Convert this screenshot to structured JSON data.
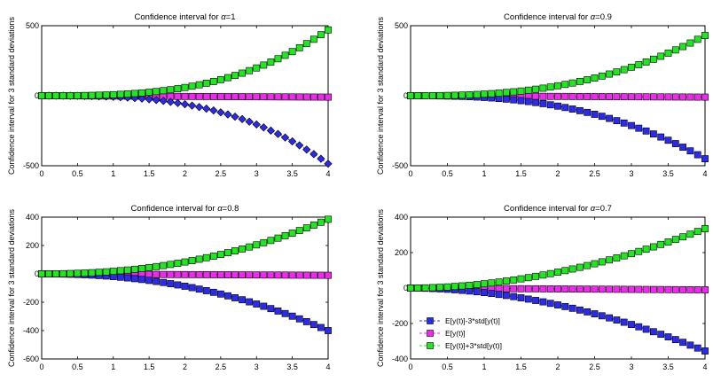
{
  "colors": {
    "lower": "#2b2be8",
    "mean": "#ee2aee",
    "upper": "#22e622",
    "axis": "#000000",
    "background": "#ffffff"
  },
  "legend": {
    "location": "lower-left of bottom-right panel",
    "entries": [
      {
        "label": "E[y(t)]-3*std[y(t)]",
        "series": "lower"
      },
      {
        "label": "E[y(t)]",
        "series": "mean"
      },
      {
        "label": "E[y(t)]+3*std[y(t)]",
        "series": "upper"
      }
    ]
  },
  "chart_data": [
    {
      "type": "line",
      "title_prefix": "Confidence interval for ",
      "alpha_symbol": "α",
      "alpha_value": "=1",
      "ylabel": "Confidence interval for 3 standard deviations",
      "xlabel": "",
      "xlim": [
        0,
        4
      ],
      "ylim": [
        -500,
        500
      ],
      "xticks": [
        "0",
        "0.5",
        "1",
        "1.5",
        "2",
        "2.5",
        "3",
        "3.5",
        "4"
      ],
      "yticks": [
        "-500",
        "0",
        "500"
      ],
      "lower_marker": "diamond",
      "x_start": 0,
      "x_step": 0.1,
      "n_points": 41,
      "series": [
        {
          "name": "E[y(t)]-3*std[y(t)]",
          "key": "lower",
          "endpoint": -486,
          "shape_exponent": 3
        },
        {
          "name": "E[y(t)]",
          "key": "mean",
          "endpoint": -10,
          "shape_exponent": 1
        },
        {
          "name": "E[y(t)]+3*std[y(t)]",
          "key": "upper",
          "endpoint": 470,
          "shape_exponent": 3
        }
      ]
    },
    {
      "type": "line",
      "title_prefix": "Confidence interval for ",
      "alpha_symbol": "α",
      "alpha_value": "=0.9",
      "ylabel": "Confidence interval for 3 standard deviations",
      "xlabel": "",
      "xlim": [
        0,
        4
      ],
      "ylim": [
        -500,
        500
      ],
      "xticks": [
        "0",
        "0.5",
        "1",
        "1.5",
        "2",
        "2.5",
        "3",
        "3.5",
        "4"
      ],
      "yticks": [
        "-500",
        "0",
        "500"
      ],
      "lower_marker": "square",
      "x_start": 0,
      "x_step": 0.1,
      "n_points": 41,
      "series": [
        {
          "name": "E[y(t)]-3*std[y(t)]",
          "key": "lower",
          "endpoint": -450,
          "shape_exponent": 2.6
        },
        {
          "name": "E[y(t)]",
          "key": "mean",
          "endpoint": -10,
          "shape_exponent": 1
        },
        {
          "name": "E[y(t)]+3*std[y(t)]",
          "key": "upper",
          "endpoint": 430,
          "shape_exponent": 2.6
        }
      ]
    },
    {
      "type": "line",
      "title_prefix": "Confidence interval for ",
      "alpha_symbol": "α",
      "alpha_value": "=0.8",
      "ylabel": "Confidence interval for 3 standard deviations",
      "xlabel": "",
      "xlim": [
        0,
        4
      ],
      "ylim": [
        -600,
        400
      ],
      "xticks": [
        "0",
        "0.5",
        "1",
        "1.5",
        "2",
        "2.5",
        "3",
        "3.5",
        "4"
      ],
      "yticks": [
        "-600",
        "-400",
        "-200",
        "0",
        "200",
        "400"
      ],
      "lower_marker": "square",
      "x_start": 0,
      "x_step": 0.1,
      "n_points": 41,
      "series": [
        {
          "name": "E[y(t)]-3*std[y(t)]",
          "key": "lower",
          "endpoint": -400,
          "shape_exponent": 2.2
        },
        {
          "name": "E[y(t)]",
          "key": "mean",
          "endpoint": -10,
          "shape_exponent": 1
        },
        {
          "name": "E[y(t)]+3*std[y(t)]",
          "key": "upper",
          "endpoint": 385,
          "shape_exponent": 2.2
        }
      ]
    },
    {
      "type": "line",
      "title_prefix": "Confidence interval for ",
      "alpha_symbol": "α",
      "alpha_value": "=0.7",
      "ylabel": "Confidence interval for 3 standard deviations",
      "xlabel": "",
      "xlim": [
        0,
        4
      ],
      "ylim": [
        -400,
        400
      ],
      "xticks": [
        "0",
        "0.5",
        "1",
        "1.5",
        "2",
        "2.5",
        "3",
        "3.5",
        "4"
      ],
      "yticks": [
        "-400",
        "-200",
        "0",
        "200",
        "400"
      ],
      "lower_marker": "square",
      "x_start": 0,
      "x_step": 0.1,
      "n_points": 41,
      "series": [
        {
          "name": "E[y(t)]-3*std[y(t)]",
          "key": "lower",
          "endpoint": -355,
          "shape_exponent": 1.9
        },
        {
          "name": "E[y(t)]",
          "key": "mean",
          "endpoint": -10,
          "shape_exponent": 1
        },
        {
          "name": "E[y(t)]+3*std[y(t)]",
          "key": "upper",
          "endpoint": 335,
          "shape_exponent": 1.9
        }
      ]
    }
  ]
}
